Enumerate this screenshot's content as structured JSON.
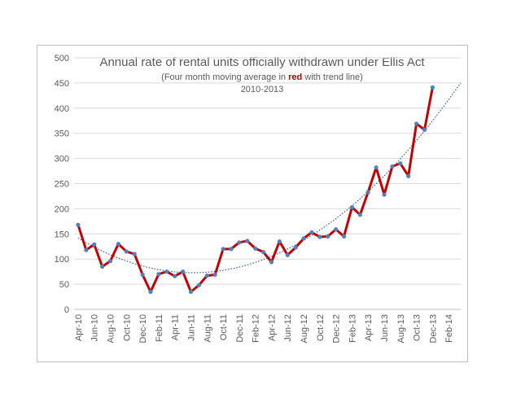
{
  "chart_data": {
    "type": "line",
    "title": "Annual rate of rental units officially withdrawn under Ellis Act",
    "subtitle_before": "(Four month moving average in ",
    "subtitle_red": "red",
    "subtitle_after": " with trend line)",
    "subtitle2": "2010-2013",
    "xlabel": "",
    "ylabel": "",
    "ylim": [
      0,
      500
    ],
    "yticks": [
      0,
      50,
      100,
      150,
      200,
      250,
      300,
      350,
      400,
      450,
      500
    ],
    "grid": true,
    "x_tick_labels": [
      "Apr-10",
      "Jun-10",
      "Aug-10",
      "Oct-10",
      "Dec-10",
      "Feb-11",
      "Apr-11",
      "Jun-11",
      "Aug-11",
      "Oct-11",
      "Dec-11",
      "Feb-12",
      "Apr-12",
      "Jun-12",
      "Aug-12",
      "Oct-12",
      "Dec-12",
      "Feb-13",
      "Apr-13",
      "Jun-13",
      "Aug-13",
      "Oct-13",
      "Dec-13",
      "Feb-14"
    ],
    "months": [
      "Apr-10",
      "May-10",
      "Jun-10",
      "Jul-10",
      "Aug-10",
      "Sep-10",
      "Oct-10",
      "Nov-10",
      "Dec-10",
      "Jan-11",
      "Feb-11",
      "Mar-11",
      "Apr-11",
      "May-11",
      "Jun-11",
      "Jul-11",
      "Aug-11",
      "Sep-11",
      "Oct-11",
      "Nov-11",
      "Dec-11",
      "Jan-12",
      "Feb-12",
      "Mar-12",
      "Apr-12",
      "May-12",
      "Jun-12",
      "Jul-12",
      "Aug-12",
      "Sep-12",
      "Oct-12",
      "Nov-12",
      "Dec-12",
      "Jan-13",
      "Feb-13",
      "Mar-13",
      "Apr-13",
      "May-13",
      "Jun-13",
      "Jul-13",
      "Aug-13",
      "Sep-13",
      "Oct-13",
      "Nov-13",
      "Dec-13"
    ],
    "series": [
      {
        "values": [
          168,
          118,
          129,
          85,
          96,
          130,
          115,
          110,
          69,
          35,
          70,
          75,
          66,
          75,
          35,
          48,
          67,
          69,
          120,
          120,
          133,
          136,
          121,
          114,
          94,
          135,
          108,
          123,
          141,
          153,
          144,
          145,
          159,
          145,
          203,
          188,
          233,
          282,
          228,
          284,
          290,
          265,
          369,
          357,
          441
        ],
        "color": "#c00000",
        "marker_color": "#4f81bd"
      }
    ],
    "trend": {
      "style": "dotted",
      "color": "#2e5c9e",
      "x_range": [
        0,
        47.5
      ]
    }
  }
}
